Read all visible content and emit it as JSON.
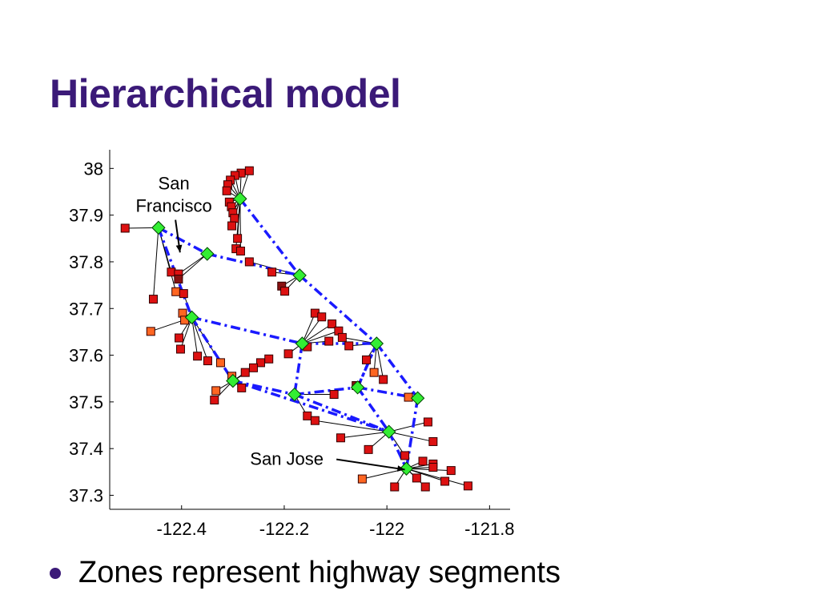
{
  "slide": {
    "title": "Hierarchical model",
    "bullets": [
      "Zones represent highway segments"
    ]
  },
  "colors": {
    "title": "#3b1a78",
    "hub": "#33ee33",
    "zone": "#dd1111",
    "zone_alt": "#ff6622",
    "zone_dark": "#881111",
    "backbone": "#1a1aff",
    "spoke": "#000000"
  },
  "chart_data": {
    "type": "scatter",
    "xlim": [
      -122.54,
      -121.76
    ],
    "ylim": [
      37.27,
      38.04
    ],
    "xticks": [
      -122.4,
      -122.2,
      -122,
      -121.8
    ],
    "xtick_labels": [
      "-122.4",
      "-122.2",
      "-122",
      "-121.8"
    ],
    "yticks": [
      37.3,
      37.4,
      37.5,
      37.6,
      37.7,
      37.8,
      37.9,
      38
    ],
    "ytick_labels": [
      "37.3",
      "37.4",
      "37.5",
      "37.6",
      "37.7",
      "37.8",
      "37.9",
      "38"
    ],
    "annotations": [
      {
        "lines": [
          "San",
          "Francisco"
        ],
        "x": -122.415,
        "y": 37.955,
        "target": [
          -122.403,
          37.82
        ]
      },
      {
        "lines": [
          "San Jose"
        ],
        "x": -122.195,
        "y": 37.365,
        "target": [
          -121.965,
          37.355
        ]
      }
    ],
    "hubs": [
      {
        "x": -122.286,
        "y": 37.935
      },
      {
        "x": -122.445,
        "y": 37.873
      },
      {
        "x": -122.35,
        "y": 37.817
      },
      {
        "x": -122.17,
        "y": 37.771
      },
      {
        "x": -122.38,
        "y": 37.681
      },
      {
        "x": -122.165,
        "y": 37.625
      },
      {
        "x": -122.02,
        "y": 37.625
      },
      {
        "x": -122.3,
        "y": 37.545
      },
      {
        "x": -122.18,
        "y": 37.516
      },
      {
        "x": -122.057,
        "y": 37.531
      },
      {
        "x": -121.94,
        "y": 37.508
      },
      {
        "x": -121.996,
        "y": 37.436
      },
      {
        "x": -121.962,
        "y": 37.357
      }
    ],
    "backbone_edges": [
      [
        0,
        3
      ],
      [
        1,
        2
      ],
      [
        2,
        3
      ],
      [
        1,
        4
      ],
      [
        3,
        6
      ],
      [
        4,
        5
      ],
      [
        4,
        7
      ],
      [
        5,
        6
      ],
      [
        5,
        8
      ],
      [
        7,
        8
      ],
      [
        8,
        9
      ],
      [
        9,
        6
      ],
      [
        9,
        10
      ],
      [
        6,
        10
      ],
      [
        7,
        11
      ],
      [
        9,
        11
      ],
      [
        11,
        12
      ],
      [
        10,
        12
      ],
      [
        8,
        11
      ],
      [
        6,
        9
      ]
    ],
    "zones": [
      {
        "x": -122.268,
        "y": 37.995,
        "hub": 0
      },
      {
        "x": -122.284,
        "y": 37.99,
        "hub": 0
      },
      {
        "x": -122.296,
        "y": 37.985,
        "hub": 0
      },
      {
        "x": -122.305,
        "y": 37.975,
        "hub": 0
      },
      {
        "x": -122.31,
        "y": 37.965,
        "hub": 0
      },
      {
        "x": -122.312,
        "y": 37.952,
        "hub": 0
      },
      {
        "x": -122.307,
        "y": 37.928,
        "hub": 0
      },
      {
        "x": -122.303,
        "y": 37.918,
        "hub": 0
      },
      {
        "x": -122.3,
        "y": 37.905,
        "hub": 0
      },
      {
        "x": -122.297,
        "y": 37.893,
        "hub": 0
      },
      {
        "x": -122.302,
        "y": 37.877,
        "hub": 0
      },
      {
        "x": -122.291,
        "y": 37.85,
        "hub": 0
      },
      {
        "x": -122.294,
        "y": 37.828,
        "hub": 0
      },
      {
        "x": -122.285,
        "y": 37.823,
        "hub": 0
      },
      {
        "x": -122.268,
        "y": 37.8,
        "hub": 3
      },
      {
        "x": -122.224,
        "y": 37.778,
        "hub": 3
      },
      {
        "x": -122.205,
        "y": 37.748,
        "hub": 3,
        "c": "zone_dark"
      },
      {
        "x": -122.199,
        "y": 37.737,
        "hub": 3
      },
      {
        "x": -122.51,
        "y": 37.872,
        "hub": 1
      },
      {
        "x": -122.42,
        "y": 37.778,
        "hub": 1
      },
      {
        "x": -122.406,
        "y": 37.774,
        "hub": 2
      },
      {
        "x": -122.406,
        "y": 37.763,
        "hub": 2,
        "c": "zone_dark"
      },
      {
        "x": -122.411,
        "y": 37.736,
        "hub": 1,
        "c": "zone_alt"
      },
      {
        "x": -122.455,
        "y": 37.72,
        "hub": 1
      },
      {
        "x": -122.396,
        "y": 37.732,
        "hub": 4
      },
      {
        "x": -122.398,
        "y": 37.69,
        "hub": 4,
        "c": "zone_alt"
      },
      {
        "x": -122.394,
        "y": 37.675,
        "hub": 4,
        "c": "zone_alt"
      },
      {
        "x": -122.46,
        "y": 37.651,
        "hub": 4,
        "c": "zone_alt"
      },
      {
        "x": -122.405,
        "y": 37.637,
        "hub": 4
      },
      {
        "x": -122.402,
        "y": 37.613,
        "hub": 4
      },
      {
        "x": -122.369,
        "y": 37.598,
        "hub": 4
      },
      {
        "x": -122.349,
        "y": 37.588,
        "hub": 4
      },
      {
        "x": -122.324,
        "y": 37.584,
        "hub": 4,
        "c": "zone_alt"
      },
      {
        "x": -122.14,
        "y": 37.69,
        "hub": 5
      },
      {
        "x": -122.127,
        "y": 37.682,
        "hub": 5
      },
      {
        "x": -122.107,
        "y": 37.667,
        "hub": 5
      },
      {
        "x": -122.094,
        "y": 37.652,
        "hub": 5
      },
      {
        "x": -122.087,
        "y": 37.638,
        "hub": 6
      },
      {
        "x": -122.155,
        "y": 37.618,
        "hub": 5
      },
      {
        "x": -122.192,
        "y": 37.603,
        "hub": 5
      },
      {
        "x": -122.113,
        "y": 37.63,
        "hub": 5
      },
      {
        "x": -122.074,
        "y": 37.62,
        "hub": 6
      },
      {
        "x": -122.04,
        "y": 37.59,
        "hub": 6
      },
      {
        "x": -122.025,
        "y": 37.563,
        "hub": 6,
        "c": "zone_alt"
      },
      {
        "x": -122.007,
        "y": 37.548,
        "hub": 6
      },
      {
        "x": -122.23,
        "y": 37.592,
        "hub": 7
      },
      {
        "x": -122.246,
        "y": 37.584,
        "hub": 7
      },
      {
        "x": -122.26,
        "y": 37.573,
        "hub": 7
      },
      {
        "x": -122.276,
        "y": 37.563,
        "hub": 7
      },
      {
        "x": -122.302,
        "y": 37.555,
        "hub": 7,
        "c": "zone_alt"
      },
      {
        "x": -122.283,
        "y": 37.53,
        "hub": 7
      },
      {
        "x": -122.333,
        "y": 37.524,
        "hub": 7,
        "c": "zone_alt"
      },
      {
        "x": -122.336,
        "y": 37.504,
        "hub": 7
      },
      {
        "x": -122.103,
        "y": 37.516,
        "hub": 8
      },
      {
        "x": -122.06,
        "y": 37.535,
        "hub": 9,
        "c": "zone_dark"
      },
      {
        "x": -122.155,
        "y": 37.47,
        "hub": 8
      },
      {
        "x": -122.14,
        "y": 37.46,
        "hub": 11
      },
      {
        "x": -122.09,
        "y": 37.423,
        "hub": 11
      },
      {
        "x": -122.036,
        "y": 37.398,
        "hub": 11
      },
      {
        "x": -121.958,
        "y": 37.51,
        "hub": 10,
        "c": "zone_alt"
      },
      {
        "x": -121.92,
        "y": 37.457,
        "hub": 11
      },
      {
        "x": -121.91,
        "y": 37.415,
        "hub": 11
      },
      {
        "x": -121.965,
        "y": 37.385,
        "hub": 11
      },
      {
        "x": -121.93,
        "y": 37.373,
        "hub": 12
      },
      {
        "x": -121.91,
        "y": 37.367,
        "hub": 12
      },
      {
        "x": -121.91,
        "y": 37.36,
        "hub": 12
      },
      {
        "x": -121.875,
        "y": 37.353,
        "hub": 12
      },
      {
        "x": -122.048,
        "y": 37.335,
        "hub": 12,
        "c": "zone_alt"
      },
      {
        "x": -121.985,
        "y": 37.318,
        "hub": 12
      },
      {
        "x": -121.942,
        "y": 37.337,
        "hub": 12
      },
      {
        "x": -121.925,
        "y": 37.318,
        "hub": 12
      },
      {
        "x": -121.887,
        "y": 37.33,
        "hub": 12
      },
      {
        "x": -121.842,
        "y": 37.32,
        "hub": 12
      }
    ]
  }
}
